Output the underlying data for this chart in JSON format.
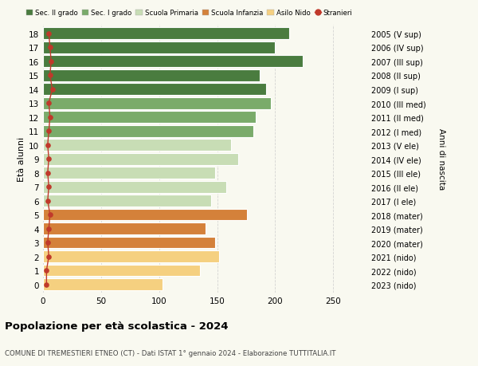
{
  "ages": [
    18,
    17,
    16,
    15,
    14,
    13,
    12,
    11,
    10,
    9,
    8,
    7,
    6,
    5,
    4,
    3,
    2,
    1,
    0
  ],
  "values": [
    212,
    200,
    224,
    187,
    192,
    196,
    183,
    181,
    162,
    168,
    148,
    158,
    145,
    176,
    140,
    148,
    152,
    135,
    103
  ],
  "stranieri": [
    5,
    6,
    7,
    6,
    8,
    5,
    6,
    5,
    4,
    5,
    4,
    5,
    4,
    6,
    5,
    4,
    5,
    3,
    3
  ],
  "bar_colors": [
    "#4a7c3f",
    "#4a7c3f",
    "#4a7c3f",
    "#4a7c3f",
    "#4a7c3f",
    "#7aab6a",
    "#7aab6a",
    "#7aab6a",
    "#c8ddb5",
    "#c8ddb5",
    "#c8ddb5",
    "#c8ddb5",
    "#c8ddb5",
    "#d4813a",
    "#d4813a",
    "#d4813a",
    "#f5d080",
    "#f5d080",
    "#f5d080"
  ],
  "right_labels": [
    "2005 (V sup)",
    "2006 (IV sup)",
    "2007 (III sup)",
    "2008 (II sup)",
    "2009 (I sup)",
    "2010 (III med)",
    "2011 (II med)",
    "2012 (I med)",
    "2013 (V ele)",
    "2014 (IV ele)",
    "2015 (III ele)",
    "2016 (II ele)",
    "2017 (I ele)",
    "2018 (mater)",
    "2019 (mater)",
    "2020 (mater)",
    "2021 (nido)",
    "2022 (nido)",
    "2023 (nido)"
  ],
  "legend_labels": [
    "Sec. II grado",
    "Sec. I grado",
    "Scuola Primaria",
    "Scuola Infanzia",
    "Asilo Nido",
    "Stranieri"
  ],
  "legend_colors": [
    "#4a7c3f",
    "#7aab6a",
    "#c8ddb5",
    "#d4813a",
    "#f5d080",
    "#c0392b"
  ],
  "ylabel": "Età alunni",
  "right_ylabel": "Anni di nascita",
  "title": "Popolazione per età scolastica - 2024",
  "subtitle": "COMUNE DI TREMESTIERI ETNEO (CT) - Dati ISTAT 1° gennaio 2024 - Elaborazione TUTTITALIA.IT",
  "xlim": [
    0,
    280
  ],
  "xticks": [
    0,
    50,
    100,
    150,
    200,
    250
  ],
  "background_color": "#f9f9f0",
  "bar_edge_color": "white",
  "stranieri_color": "#c0392b",
  "grid_color": "#cccccc"
}
